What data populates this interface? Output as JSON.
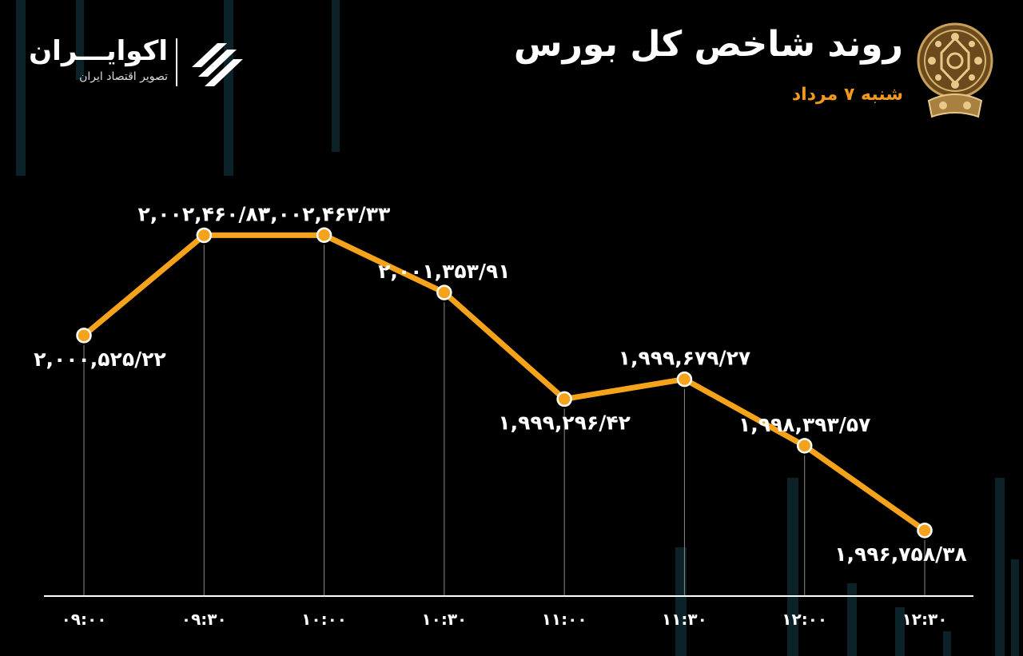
{
  "header": {
    "title": "روند شاخص کل بورس",
    "date": "شنبه ۷ مرداد"
  },
  "brand": {
    "name": "اکوایـــران",
    "tagline": "تصویر اقتصاد ایران"
  },
  "colors": {
    "background": "#000000",
    "line": "#f5a31a",
    "marker_fill": "#f5a31a",
    "marker_stroke": "#ffffff",
    "accent_text": "#f29a1e",
    "axis": "#ffffff",
    "drop_lines": "#8a8a8a",
    "bg_bars": "#0b2228"
  },
  "icons": {
    "brand_mark": "ecoiran-logo-icon",
    "exchange_emblem": "tehran-stock-exchange-emblem-icon"
  },
  "chart_data": {
    "type": "line",
    "title": "روند شاخص کل بورس",
    "subtitle": "شنبه ۷ مرداد",
    "xlabel": "",
    "ylabel": "",
    "categories": [
      "۰۹:۰۰",
      "۰۹:۳۰",
      "۱۰:۰۰",
      "۱۰:۳۰",
      "۱۱:۰۰",
      "۱۱:۳۰",
      "۱۲:۰۰",
      "۱۲:۳۰"
    ],
    "values": [
      2000525.22,
      2002460.83,
      2002463.33,
      2001353.91,
      1999296.42,
      1999679.27,
      1998393.57,
      1996758.38
    ],
    "data_labels": [
      "۲,۰۰۰,۵۲۵/۲۲",
      "۲,۰۰۲,۴۶۰/۸۳",
      "۲,۰۰۲,۴۶۳/۳۳",
      "۲,۰۰۱,۳۵۳/۹۱",
      "۱,۹۹۹,۲۹۶/۴۲",
      "۱,۹۹۹,۶۷۹/۲۷",
      "۱,۹۹۸,۳۹۳/۵۷",
      "۱,۹۹۶,۷۵۸/۳۸"
    ],
    "label_position": [
      "below",
      "above",
      "above",
      "above",
      "below",
      "above",
      "above",
      "below"
    ],
    "ylim": [
      1996200,
      2002900
    ],
    "grid": false,
    "legend": "none"
  }
}
